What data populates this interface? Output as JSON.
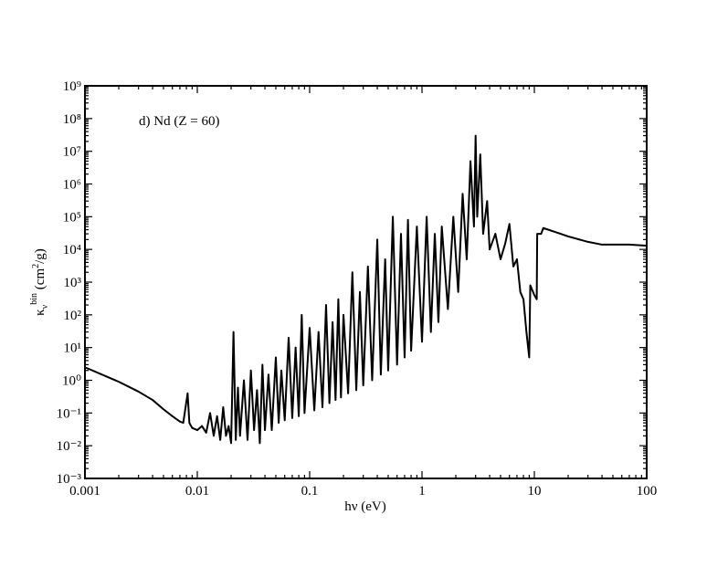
{
  "chart_data": {
    "type": "line",
    "xlog": true,
    "ylog": true,
    "color": "#000000",
    "annotation": "d) Nd (Z = 60)",
    "xlabel": "hν (eV)",
    "ylabel_parts": [
      "κ",
      "ν",
      "bin",
      " (cm",
      "2",
      "/g)"
    ],
    "xlim": [
      0.001,
      100
    ],
    "xticks": [
      0.001,
      0.01,
      0.1,
      1,
      10,
      100
    ],
    "ylim": [
      0.001,
      1000000000
    ],
    "yticks": [
      {
        "value": 0.001,
        "label": "10⁻³"
      },
      {
        "value": 0.01,
        "label": "10⁻²"
      },
      {
        "value": 0.1,
        "label": "10⁻¹"
      },
      {
        "value": 1,
        "label": "10⁰"
      },
      {
        "value": 10,
        "label": "10¹"
      },
      {
        "value": 100,
        "label": "10²"
      },
      {
        "value": 1000,
        "label": "10³"
      },
      {
        "value": 10000,
        "label": "10⁴"
      },
      {
        "value": 100000,
        "label": "10⁵"
      },
      {
        "value": 1000000,
        "label": "10⁶"
      },
      {
        "value": 10000000,
        "label": "10⁷"
      },
      {
        "value": 100000000,
        "label": "10⁸"
      },
      {
        "value": 1000000000,
        "label": "10⁹"
      }
    ],
    "x": [
      0.001,
      0.002,
      0.003,
      0.004,
      0.005,
      0.006,
      0.007,
      0.0075,
      0.0082,
      0.0085,
      0.009,
      0.01,
      0.011,
      0.012,
      0.013,
      0.014,
      0.015,
      0.016,
      0.017,
      0.018,
      0.019,
      0.02,
      0.021,
      0.022,
      0.023,
      0.024,
      0.026,
      0.028,
      0.03,
      0.032,
      0.034,
      0.036,
      0.038,
      0.04,
      0.043,
      0.046,
      0.05,
      0.053,
      0.056,
      0.06,
      0.065,
      0.07,
      0.075,
      0.08,
      0.085,
      0.09,
      0.1,
      0.11,
      0.12,
      0.13,
      0.14,
      0.15,
      0.16,
      0.17,
      0.18,
      0.19,
      0.2,
      0.22,
      0.24,
      0.26,
      0.28,
      0.3,
      0.33,
      0.36,
      0.4,
      0.43,
      0.47,
      0.5,
      0.55,
      0.6,
      0.65,
      0.7,
      0.75,
      0.8,
      0.9,
      1.0,
      1.1,
      1.2,
      1.3,
      1.4,
      1.5,
      1.7,
      1.9,
      2.1,
      2.3,
      2.5,
      2.7,
      2.9,
      3.0,
      3.1,
      3.3,
      3.5,
      3.8,
      4.0,
      4.5,
      5.0,
      5.5,
      6.0,
      6.5,
      7.0,
      7.5,
      8.0,
      8.5,
      9.0,
      9.2,
      10.0,
      10.5,
      10.6,
      11.5,
      12.0,
      15,
      20,
      30,
      40,
      50,
      70,
      100
    ],
    "values": [
      2.5,
      0.9,
      0.45,
      0.25,
      0.13,
      0.08,
      0.055,
      0.05,
      0.4,
      0.05,
      0.035,
      0.03,
      0.04,
      0.025,
      0.1,
      0.02,
      0.08,
      0.015,
      0.15,
      0.02,
      0.04,
      0.012,
      30,
      0.015,
      0.6,
      0.02,
      1.0,
      0.015,
      2,
      0.03,
      0.5,
      0.012,
      3,
      0.03,
      1.5,
      0.03,
      5,
      0.05,
      2,
      0.06,
      20,
      0.07,
      10,
      0.08,
      100,
      0.1,
      40,
      0.12,
      30,
      0.15,
      200,
      0.2,
      60,
      0.25,
      300,
      0.3,
      100,
      0.4,
      2000,
      0.5,
      500,
      0.7,
      3000,
      1,
      20000,
      1.5,
      5000,
      2,
      100000,
      3,
      30000,
      5,
      80000,
      8,
      50000,
      15,
      100000,
      30,
      30000,
      60,
      50000,
      150,
      100000,
      500,
      500000,
      5000,
      5000000,
      50000,
      30000000,
      100000,
      8000000,
      30000,
      300000,
      10000,
      30000,
      5000,
      15000,
      60000,
      3000,
      5000,
      500,
      300,
      30,
      5,
      800,
      400,
      300,
      30000,
      30000,
      45000,
      35000,
      25000,
      17000,
      14000,
      14000,
      14000,
      13000
    ]
  }
}
